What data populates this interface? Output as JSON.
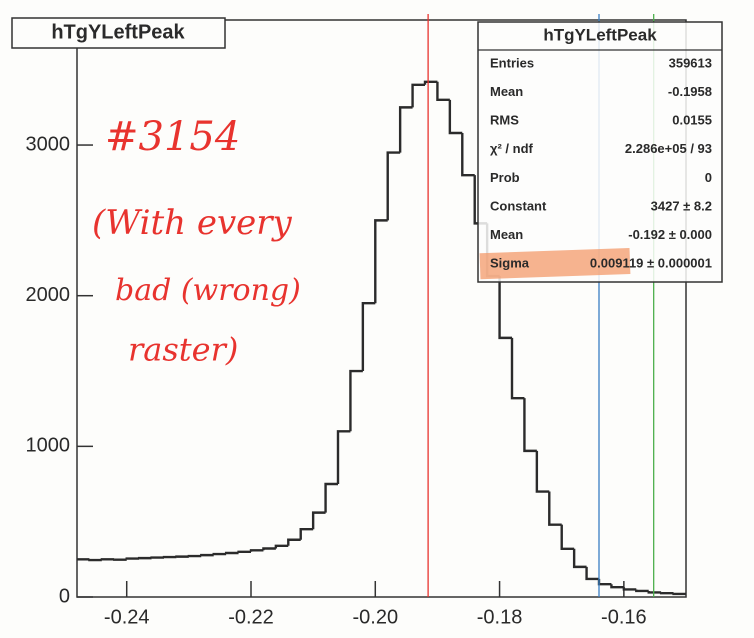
{
  "chart_data": {
    "type": "histogram",
    "title": "hTgYLeftPeak",
    "color": "#2b2b2b",
    "bins": [
      -0.248,
      -0.246,
      -0.244,
      -0.242,
      -0.24,
      -0.238,
      -0.236,
      -0.234,
      -0.232,
      -0.23,
      -0.228,
      -0.226,
      -0.224,
      -0.222,
      -0.22,
      -0.218,
      -0.216,
      -0.214,
      -0.212,
      -0.21,
      -0.208,
      -0.206,
      -0.204,
      -0.202,
      -0.2,
      -0.198,
      -0.196,
      -0.194,
      -0.192,
      -0.19,
      -0.188,
      -0.186,
      -0.184,
      -0.182,
      -0.18,
      -0.178,
      -0.176,
      -0.174,
      -0.172,
      -0.17,
      -0.168,
      -0.166,
      -0.164,
      -0.162,
      -0.16,
      -0.158,
      -0.156,
      -0.154,
      -0.152,
      -0.15
    ],
    "values": [
      250,
      245,
      250,
      248,
      255,
      258,
      262,
      265,
      268,
      272,
      278,
      285,
      292,
      300,
      310,
      322,
      340,
      380,
      450,
      560,
      750,
      1100,
      1500,
      1950,
      2500,
      2950,
      3250,
      3400,
      3420,
      3300,
      3080,
      2800,
      2480,
      2130,
      1720,
      1320,
      970,
      700,
      480,
      320,
      200,
      120,
      85,
      65,
      50,
      40,
      30,
      25,
      20
    ],
    "xlim": [
      -0.248,
      -0.15
    ],
    "ylim": [
      0,
      3830
    ],
    "xticks": [
      -0.24,
      -0.22,
      {
        "value": -0.2,
        "label": "-0.20"
      },
      -0.18,
      -0.16
    ],
    "yticks": [
      0,
      1000,
      2000,
      3000
    ],
    "markers": [
      {
        "x": -0.1915,
        "color": "#e8332e"
      },
      {
        "x": -0.164,
        "color": "#3a7fc4"
      },
      {
        "x": -0.1552,
        "color": "#4cb04c"
      }
    ],
    "stats_box": {
      "title": "hTgYLeftPeak",
      "rows": [
        [
          "Entries",
          "359613"
        ],
        [
          "Mean",
          "-0.1958"
        ],
        [
          "RMS",
          "0.0155"
        ],
        [
          "χ² / ndf",
          "2.286e+05 / 93"
        ],
        [
          "Prob",
          "0"
        ],
        [
          "Constant",
          "3427 ± 8.2"
        ],
        [
          "Mean",
          "-0.192 ± 0.000"
        ],
        [
          "Sigma",
          "0.009119 ± 0.000001"
        ]
      ]
    },
    "annotations": [
      "#3154",
      "(With every",
      "bad (wrong)",
      "raster)"
    ]
  }
}
